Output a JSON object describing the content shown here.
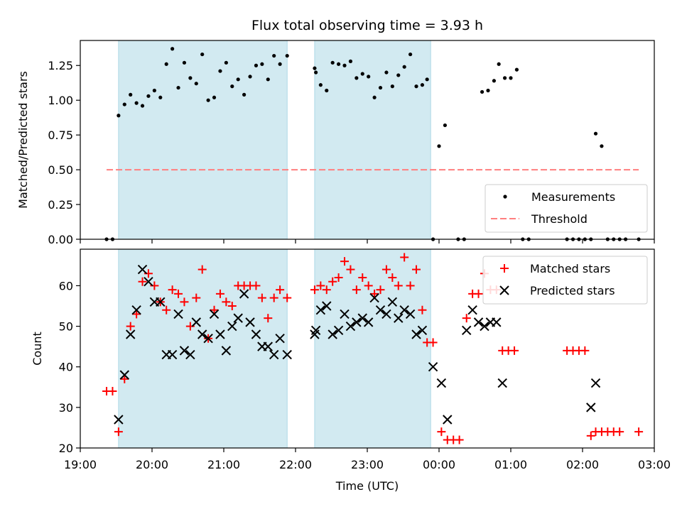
{
  "chart_data": [
    {
      "type": "scatter",
      "title": "Flux total observing time = 3.93 h",
      "xlabel": "",
      "ylabel": "Matched/Predicted stars",
      "xlim": [
        "19:00",
        "03:00"
      ],
      "ylim": [
        0,
        1.43
      ],
      "yticks": [
        "0.00",
        "0.25",
        "0.50",
        "0.75",
        "1.00",
        "1.25"
      ],
      "legend_position": "lower-right",
      "shaded_intervals": [
        [
          "19:32",
          "21:53"
        ],
        [
          "22:16",
          "23:53"
        ]
      ],
      "shade_color": "#add8e6",
      "threshold": {
        "name": "Threshold",
        "value": 0.5,
        "x_range": [
          "19:22",
          "02:47"
        ],
        "color": "#ff7f7f"
      },
      "series": [
        {
          "name": "Measurements",
          "color": "#000000",
          "points": [
            [
              "19:22",
              0.0
            ],
            [
              "19:27",
              0.0
            ],
            [
              "19:32",
              0.89
            ],
            [
              "19:37",
              0.97
            ],
            [
              "19:42",
              1.04
            ],
            [
              "19:47",
              0.98
            ],
            [
              "19:52",
              0.96
            ],
            [
              "19:57",
              1.03
            ],
            [
              "20:02",
              1.07
            ],
            [
              "20:07",
              1.02
            ],
            [
              "20:12",
              1.26
            ],
            [
              "20:17",
              1.37
            ],
            [
              "20:22",
              1.09
            ],
            [
              "20:27",
              1.27
            ],
            [
              "20:32",
              1.16
            ],
            [
              "20:37",
              1.12
            ],
            [
              "20:42",
              1.33
            ],
            [
              "20:47",
              1.0
            ],
            [
              "20:52",
              1.02
            ],
            [
              "20:57",
              1.21
            ],
            [
              "21:02",
              1.27
            ],
            [
              "21:07",
              1.1
            ],
            [
              "21:12",
              1.15
            ],
            [
              "21:17",
              1.04
            ],
            [
              "21:22",
              1.17
            ],
            [
              "21:27",
              1.25
            ],
            [
              "21:32",
              1.26
            ],
            [
              "21:37",
              1.15
            ],
            [
              "21:42",
              1.32
            ],
            [
              "21:47",
              1.26
            ],
            [
              "21:53",
              1.32
            ],
            [
              "22:16",
              1.23
            ],
            [
              "22:17",
              1.2
            ],
            [
              "22:21",
              1.11
            ],
            [
              "22:26",
              1.07
            ],
            [
              "22:31",
              1.27
            ],
            [
              "22:36",
              1.26
            ],
            [
              "22:41",
              1.25
            ],
            [
              "22:46",
              1.28
            ],
            [
              "22:51",
              1.16
            ],
            [
              "22:56",
              1.19
            ],
            [
              "23:01",
              1.17
            ],
            [
              "23:06",
              1.02
            ],
            [
              "23:11",
              1.09
            ],
            [
              "23:16",
              1.2
            ],
            [
              "23:21",
              1.1
            ],
            [
              "23:26",
              1.18
            ],
            [
              "23:31",
              1.24
            ],
            [
              "23:36",
              1.33
            ],
            [
              "23:41",
              1.1
            ],
            [
              "23:46",
              1.11
            ],
            [
              "23:50",
              1.15
            ],
            [
              "23:55",
              0.0
            ],
            [
              "00:00",
              0.67
            ],
            [
              "00:05",
              0.82
            ],
            [
              "00:16",
              0.0
            ],
            [
              "00:21",
              0.0
            ],
            [
              "00:36",
              1.06
            ],
            [
              "00:41",
              1.07
            ],
            [
              "00:46",
              1.14
            ],
            [
              "00:50",
              1.26
            ],
            [
              "00:55",
              1.16
            ],
            [
              "01:00",
              1.16
            ],
            [
              "01:05",
              1.22
            ],
            [
              "01:10",
              0.0
            ],
            [
              "01:15",
              0.0
            ],
            [
              "01:47",
              0.0
            ],
            [
              "01:52",
              0.0
            ],
            [
              "01:57",
              0.0
            ],
            [
              "02:02",
              0.0
            ],
            [
              "02:07",
              0.0
            ],
            [
              "02:11",
              0.76
            ],
            [
              "02:16",
              0.67
            ],
            [
              "02:21",
              0.0
            ],
            [
              "02:26",
              0.0
            ],
            [
              "02:31",
              0.0
            ],
            [
              "02:36",
              0.0
            ],
            [
              "02:47",
              0.0
            ]
          ]
        }
      ]
    },
    {
      "type": "scatter",
      "title": "",
      "xlabel": "Time (UTC)",
      "ylabel": "Count",
      "xlim": [
        "19:00",
        "03:00"
      ],
      "ylim": [
        20,
        69
      ],
      "yticks": [
        "20",
        "30",
        "40",
        "50",
        "60"
      ],
      "xticks": [
        "19:00",
        "20:00",
        "21:00",
        "22:00",
        "23:00",
        "00:00",
        "01:00",
        "02:00",
        "03:00"
      ],
      "legend_position": "top-right",
      "shaded_intervals": [
        [
          "19:32",
          "21:53"
        ],
        [
          "22:16",
          "23:53"
        ]
      ],
      "shade_color": "#add8e6",
      "series": [
        {
          "name": "Matched stars",
          "marker": "plus",
          "color": "#ff0000",
          "points": [
            [
              "19:22",
              34
            ],
            [
              "19:27",
              34
            ],
            [
              "19:32",
              24
            ],
            [
              "19:37",
              37
            ],
            [
              "19:42",
              50
            ],
            [
              "19:47",
              53
            ],
            [
              "19:52",
              61
            ],
            [
              "19:57",
              63
            ],
            [
              "20:02",
              60
            ],
            [
              "20:07",
              56
            ],
            [
              "20:12",
              54
            ],
            [
              "20:17",
              59
            ],
            [
              "20:22",
              58
            ],
            [
              "20:27",
              56
            ],
            [
              "20:32",
              50
            ],
            [
              "20:37",
              57
            ],
            [
              "20:42",
              64
            ],
            [
              "20:47",
              47
            ],
            [
              "20:52",
              54
            ],
            [
              "20:57",
              58
            ],
            [
              "21:02",
              56
            ],
            [
              "21:07",
              55
            ],
            [
              "21:12",
              60
            ],
            [
              "21:17",
              60
            ],
            [
              "21:22",
              60
            ],
            [
              "21:27",
              60
            ],
            [
              "21:32",
              57
            ],
            [
              "21:37",
              52
            ],
            [
              "21:42",
              57
            ],
            [
              "21:47",
              59
            ],
            [
              "21:53",
              57
            ],
            [
              "22:16",
              59
            ],
            [
              "22:21",
              60
            ],
            [
              "22:26",
              59
            ],
            [
              "22:31",
              61
            ],
            [
              "22:36",
              62
            ],
            [
              "22:41",
              66
            ],
            [
              "22:46",
              64
            ],
            [
              "22:51",
              59
            ],
            [
              "22:56",
              62
            ],
            [
              "23:01",
              60
            ],
            [
              "23:06",
              58
            ],
            [
              "23:11",
              59
            ],
            [
              "23:16",
              64
            ],
            [
              "23:21",
              62
            ],
            [
              "23:26",
              60
            ],
            [
              "23:31",
              67
            ],
            [
              "23:36",
              60
            ],
            [
              "23:41",
              64
            ],
            [
              "23:46",
              54
            ],
            [
              "23:50",
              46
            ],
            [
              "23:55",
              46
            ],
            [
              "00:02",
              24
            ],
            [
              "00:07",
              22
            ],
            [
              "00:12",
              22
            ],
            [
              "00:17",
              22
            ],
            [
              "00:23",
              52
            ],
            [
              "00:28",
              58
            ],
            [
              "00:33",
              58
            ],
            [
              "00:38",
              63
            ],
            [
              "00:43",
              59
            ],
            [
              "00:48",
              59
            ],
            [
              "00:53",
              44
            ],
            [
              "00:58",
              44
            ],
            [
              "01:03",
              44
            ],
            [
              "01:47",
              44
            ],
            [
              "01:52",
              44
            ],
            [
              "01:57",
              44
            ],
            [
              "02:02",
              44
            ],
            [
              "02:07",
              23
            ],
            [
              "02:11",
              24
            ],
            [
              "02:16",
              24
            ],
            [
              "02:21",
              24
            ],
            [
              "02:26",
              24
            ],
            [
              "02:31",
              24
            ],
            [
              "02:47",
              24
            ]
          ]
        },
        {
          "name": "Predicted stars",
          "marker": "x",
          "color": "#000000",
          "points": [
            [
              "19:32",
              27
            ],
            [
              "19:37",
              38
            ],
            [
              "19:42",
              48
            ],
            [
              "19:47",
              54
            ],
            [
              "19:52",
              64
            ],
            [
              "19:57",
              61
            ],
            [
              "20:02",
              56
            ],
            [
              "20:07",
              56
            ],
            [
              "20:12",
              43
            ],
            [
              "20:17",
              43
            ],
            [
              "20:22",
              53
            ],
            [
              "20:27",
              44
            ],
            [
              "20:32",
              43
            ],
            [
              "20:37",
              51
            ],
            [
              "20:42",
              48
            ],
            [
              "20:47",
              47
            ],
            [
              "20:52",
              53
            ],
            [
              "20:57",
              48
            ],
            [
              "21:02",
              44
            ],
            [
              "21:07",
              50
            ],
            [
              "21:12",
              52
            ],
            [
              "21:17",
              58
            ],
            [
              "21:22",
              51
            ],
            [
              "21:27",
              48
            ],
            [
              "21:32",
              45
            ],
            [
              "21:37",
              45
            ],
            [
              "21:42",
              43
            ],
            [
              "21:47",
              47
            ],
            [
              "21:53",
              43
            ],
            [
              "22:16",
              48
            ],
            [
              "22:17",
              49
            ],
            [
              "22:21",
              54
            ],
            [
              "22:26",
              55
            ],
            [
              "22:31",
              48
            ],
            [
              "22:36",
              49
            ],
            [
              "22:41",
              53
            ],
            [
              "22:46",
              50
            ],
            [
              "22:51",
              51
            ],
            [
              "22:56",
              52
            ],
            [
              "23:01",
              51
            ],
            [
              "23:06",
              57
            ],
            [
              "23:11",
              54
            ],
            [
              "23:16",
              53
            ],
            [
              "23:21",
              56
            ],
            [
              "23:26",
              52
            ],
            [
              "23:31",
              54
            ],
            [
              "23:36",
              53
            ],
            [
              "23:41",
              48
            ],
            [
              "23:46",
              49
            ],
            [
              "23:55",
              40
            ],
            [
              "00:02",
              36
            ],
            [
              "00:07",
              27
            ],
            [
              "00:23",
              49
            ],
            [
              "00:28",
              54
            ],
            [
              "00:33",
              51
            ],
            [
              "00:38",
              50
            ],
            [
              "00:43",
              51
            ],
            [
              "00:48",
              51
            ],
            [
              "00:53",
              36
            ],
            [
              "02:07",
              30
            ],
            [
              "02:11",
              36
            ]
          ]
        }
      ]
    }
  ]
}
